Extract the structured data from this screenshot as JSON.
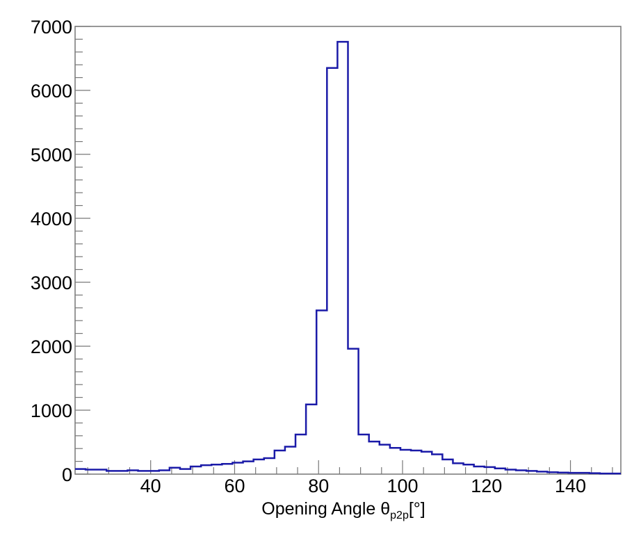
{
  "chart_data": {
    "type": "bar",
    "title": "",
    "xlabel": {
      "main": "Opening Angle θ",
      "subscript": "p2p",
      "suffix": "[°]"
    },
    "ylabel": "",
    "xlim": [
      22,
      152
    ],
    "ylim": [
      0,
      7000
    ],
    "xticks": [
      40,
      60,
      80,
      100,
      120,
      140
    ],
    "yticks": [
      0,
      1000,
      2000,
      3000,
      4000,
      5000,
      6000,
      7000
    ],
    "grid": false,
    "legend": "none",
    "bin_edges": [
      22,
      24.5,
      27,
      29.5,
      32,
      34.5,
      37,
      39.5,
      42,
      44.5,
      47,
      49.5,
      52,
      54.5,
      57,
      59.5,
      62,
      64.5,
      67,
      69.5,
      72,
      74.5,
      77,
      79.5,
      82,
      84.5,
      87,
      89.5,
      92,
      94.5,
      97,
      99.5,
      102,
      104.5,
      107,
      109.5,
      112,
      114.5,
      117,
      119.5,
      122,
      124.5,
      127,
      129.5,
      132,
      134.5,
      137,
      139.5,
      142,
      144.5,
      147,
      149.5,
      152
    ],
    "series": [
      {
        "values": [
          80,
          70,
          70,
          50,
          50,
          60,
          50,
          50,
          60,
          100,
          80,
          120,
          140,
          150,
          160,
          180,
          200,
          230,
          250,
          370,
          430,
          620,
          1090,
          2560,
          6350,
          6760,
          1960,
          620,
          510,
          460,
          410,
          380,
          370,
          350,
          310,
          230,
          170,
          150,
          120,
          110,
          90,
          70,
          60,
          50,
          40,
          30,
          25,
          20,
          20,
          15,
          10,
          10
        ],
        "color": "#1a1aa8"
      }
    ]
  }
}
